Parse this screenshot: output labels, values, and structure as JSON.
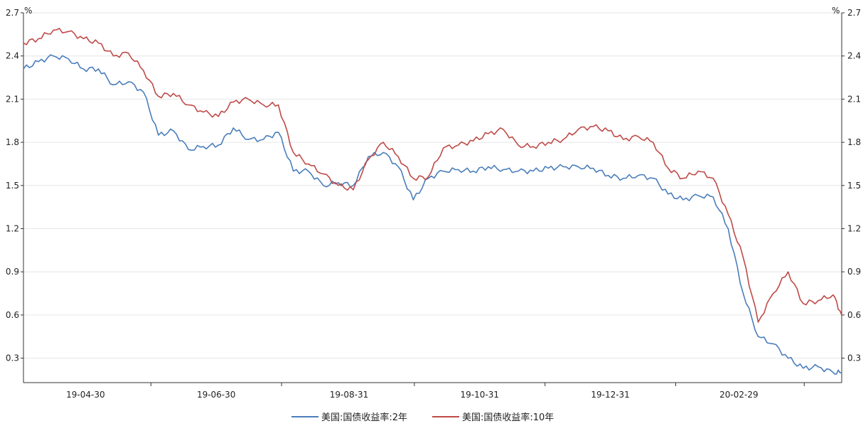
{
  "chart_data": {
    "type": "line",
    "title": "",
    "xlabel": "",
    "ylabel": "",
    "y_unit_left": "%",
    "y_unit_right": "%",
    "ylim": [
      0.13,
      2.7
    ],
    "y_ticks": [
      "0.3",
      "0.6",
      "0.9",
      "1.2",
      "1.5",
      "1.8",
      "2.1",
      "2.4",
      "2.7"
    ],
    "x_tick_labels": [
      "19-04-30",
      "19-06-30",
      "19-08-31",
      "19-10-31",
      "19-12-31",
      "20-02-29"
    ],
    "grid": true,
    "legend_position": "bottom",
    "x_range": [
      "2019-04-01",
      "2020-04-17"
    ],
    "series": [
      {
        "name": "美国:国债收益率:2年",
        "color": "#4a7ebb",
        "points": [
          [
            "2019-04-01",
            2.31
          ],
          [
            "2019-04-08",
            2.36
          ],
          [
            "2019-04-15",
            2.4
          ],
          [
            "2019-04-22",
            2.38
          ],
          [
            "2019-04-29",
            2.31
          ],
          [
            "2019-05-06",
            2.31
          ],
          [
            "2019-05-13",
            2.2
          ],
          [
            "2019-05-20",
            2.22
          ],
          [
            "2019-05-27",
            2.15
          ],
          [
            "2019-06-03",
            1.85
          ],
          [
            "2019-06-10",
            1.88
          ],
          [
            "2019-06-17",
            1.75
          ],
          [
            "2019-06-24",
            1.77
          ],
          [
            "2019-07-01",
            1.78
          ],
          [
            "2019-07-08",
            1.9
          ],
          [
            "2019-07-15",
            1.82
          ],
          [
            "2019-07-22",
            1.82
          ],
          [
            "2019-07-29",
            1.87
          ],
          [
            "2019-08-05",
            1.6
          ],
          [
            "2019-08-12",
            1.6
          ],
          [
            "2019-08-19",
            1.5
          ],
          [
            "2019-08-26",
            1.52
          ],
          [
            "2019-09-02",
            1.5
          ],
          [
            "2019-09-09",
            1.7
          ],
          [
            "2019-09-16",
            1.73
          ],
          [
            "2019-09-23",
            1.63
          ],
          [
            "2019-09-30",
            1.4
          ],
          [
            "2019-10-07",
            1.55
          ],
          [
            "2019-10-14",
            1.6
          ],
          [
            "2019-10-21",
            1.61
          ],
          [
            "2019-10-28",
            1.6
          ],
          [
            "2019-11-04",
            1.63
          ],
          [
            "2019-11-11",
            1.61
          ],
          [
            "2019-11-18",
            1.6
          ],
          [
            "2019-11-25",
            1.6
          ],
          [
            "2019-12-02",
            1.62
          ],
          [
            "2019-12-09",
            1.63
          ],
          [
            "2019-12-16",
            1.63
          ],
          [
            "2019-12-23",
            1.62
          ],
          [
            "2019-12-30",
            1.57
          ],
          [
            "2020-01-06",
            1.55
          ],
          [
            "2020-01-13",
            1.57
          ],
          [
            "2020-01-20",
            1.55
          ],
          [
            "2020-01-27",
            1.44
          ],
          [
            "2020-02-03",
            1.4
          ],
          [
            "2020-02-10",
            1.43
          ],
          [
            "2020-02-17",
            1.42
          ],
          [
            "2020-02-24",
            1.2
          ],
          [
            "2020-03-02",
            0.75
          ],
          [
            "2020-03-09",
            0.45
          ],
          [
            "2020-03-16",
            0.4
          ],
          [
            "2020-03-23",
            0.3
          ],
          [
            "2020-03-30",
            0.23
          ],
          [
            "2020-04-06",
            0.24
          ],
          [
            "2020-04-13",
            0.2
          ],
          [
            "2020-04-17",
            0.2
          ]
        ]
      },
      {
        "name": "美国:国债收益率:10年",
        "color": "#be4b48",
        "points": [
          [
            "2019-04-01",
            2.49
          ],
          [
            "2019-04-08",
            2.52
          ],
          [
            "2019-04-15",
            2.58
          ],
          [
            "2019-04-22",
            2.57
          ],
          [
            "2019-04-29",
            2.52
          ],
          [
            "2019-05-06",
            2.49
          ],
          [
            "2019-05-13",
            2.4
          ],
          [
            "2019-05-20",
            2.42
          ],
          [
            "2019-05-27",
            2.3
          ],
          [
            "2019-06-03",
            2.12
          ],
          [
            "2019-06-10",
            2.14
          ],
          [
            "2019-06-17",
            2.06
          ],
          [
            "2019-06-24",
            2.01
          ],
          [
            "2019-07-01",
            1.98
          ],
          [
            "2019-07-08",
            2.08
          ],
          [
            "2019-07-15",
            2.1
          ],
          [
            "2019-07-22",
            2.06
          ],
          [
            "2019-07-29",
            2.06
          ],
          [
            "2019-08-05",
            1.73
          ],
          [
            "2019-08-12",
            1.65
          ],
          [
            "2019-08-19",
            1.58
          ],
          [
            "2019-08-26",
            1.5
          ],
          [
            "2019-09-02",
            1.47
          ],
          [
            "2019-09-09",
            1.68
          ],
          [
            "2019-09-16",
            1.8
          ],
          [
            "2019-09-23",
            1.7
          ],
          [
            "2019-09-30",
            1.55
          ],
          [
            "2019-10-07",
            1.56
          ],
          [
            "2019-10-14",
            1.76
          ],
          [
            "2019-10-21",
            1.78
          ],
          [
            "2019-10-28",
            1.81
          ],
          [
            "2019-11-04",
            1.86
          ],
          [
            "2019-11-11",
            1.89
          ],
          [
            "2019-11-18",
            1.78
          ],
          [
            "2019-11-25",
            1.77
          ],
          [
            "2019-12-02",
            1.8
          ],
          [
            "2019-12-09",
            1.82
          ],
          [
            "2019-12-16",
            1.89
          ],
          [
            "2019-12-23",
            1.91
          ],
          [
            "2019-12-30",
            1.88
          ],
          [
            "2020-01-06",
            1.82
          ],
          [
            "2020-01-13",
            1.84
          ],
          [
            "2020-01-20",
            1.8
          ],
          [
            "2020-01-27",
            1.62
          ],
          [
            "2020-02-03",
            1.55
          ],
          [
            "2020-02-10",
            1.6
          ],
          [
            "2020-02-17",
            1.55
          ],
          [
            "2020-02-24",
            1.3
          ],
          [
            "2020-03-02",
            1.0
          ],
          [
            "2020-03-09",
            0.55
          ],
          [
            "2020-03-16",
            0.75
          ],
          [
            "2020-03-23",
            0.9
          ],
          [
            "2020-03-30",
            0.68
          ],
          [
            "2020-04-06",
            0.7
          ],
          [
            "2020-04-13",
            0.74
          ],
          [
            "2020-04-17",
            0.6
          ]
        ]
      }
    ]
  }
}
